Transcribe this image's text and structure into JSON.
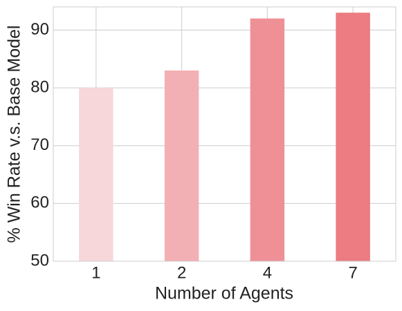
{
  "chart_data": {
    "type": "bar",
    "x_label": "Number of Agents",
    "y_label": "% Win Rate v.s. Base Model",
    "categories": [
      "1",
      "2",
      "4",
      "7"
    ],
    "values": [
      80,
      83,
      92,
      93
    ],
    "colors": [
      "#f8d7da",
      "#f3b0b4",
      "#ef9096",
      "#ec7b82"
    ],
    "ylim": [
      50,
      94
    ],
    "yticks": [
      50,
      60,
      70,
      80,
      90
    ],
    "grid": true
  }
}
